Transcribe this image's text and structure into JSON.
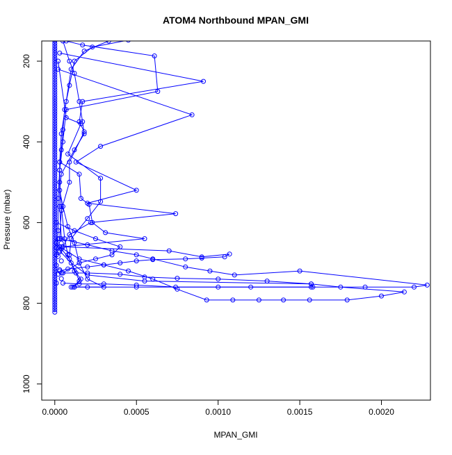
{
  "chart_data": {
    "type": "line",
    "title": "ATOM4 Northbound MPAN_GMI",
    "xlabel": "MPAN_GMI",
    "ylabel": "Pressure (mbar)",
    "xlim": [
      -8e-05,
      0.0023
    ],
    "ylim": [
      1040,
      150
    ],
    "y_reversed": true,
    "grid": false,
    "x_ticks": [
      {
        "value": 0,
        "label": "0.0000"
      },
      {
        "value": 0.0005,
        "label": "0.0005"
      },
      {
        "value": 0.001,
        "label": "0.0010"
      },
      {
        "value": 0.0015,
        "label": "0.0015"
      },
      {
        "value": 0.002,
        "label": "0.0020"
      }
    ],
    "y_ticks": [
      {
        "value": 200,
        "label": "200"
      },
      {
        "value": 400,
        "label": "400"
      },
      {
        "value": 600,
        "label": "600"
      },
      {
        "value": 800,
        "label": "800"
      },
      {
        "value": 1000,
        "label": "1000"
      }
    ],
    "color": "#0000ff",
    "series": [
      {
        "points": [
          [
            5e-05,
            150
          ],
          [
            9e-05,
            200
          ],
          [
            0.00012,
            230
          ],
          [
            0.00015,
            300
          ],
          [
            0.00017,
            350
          ],
          [
            0.00018,
            380
          ],
          [
            0.00012,
            420
          ],
          [
            4e-05,
            480
          ],
          [
            3e-05,
            520
          ],
          [
            5e-05,
            560
          ],
          [
            8e-05,
            610
          ],
          [
            0.00012,
            650
          ],
          [
            0.00015,
            700
          ],
          [
            0.0002,
            740
          ],
          [
            0.0003,
            760
          ],
          [
            0.0001,
            760
          ]
        ]
      },
      {
        "points": [
          [
            0.00033,
            150
          ],
          [
            0.00018,
            175
          ],
          [
            0.0001,
            220
          ],
          [
            7e-05,
            300
          ],
          [
            4e-05,
            380
          ],
          [
            3e-05,
            450
          ],
          [
            3e-05,
            500
          ],
          [
            4e-05,
            560
          ],
          [
            6e-05,
            640
          ],
          [
            8e-05,
            680
          ],
          [
            0.00012,
            720
          ],
          [
            0.00016,
            740
          ],
          [
            0.00011,
            760
          ]
        ]
      },
      {
        "points": [
          [
            0.00045,
            148
          ],
          [
            0.00023,
            165
          ],
          [
            0.00012,
            200
          ],
          [
            9e-05,
            260
          ],
          [
            6e-05,
            320
          ],
          [
            5e-05,
            370
          ],
          [
            4e-05,
            420
          ],
          [
            3e-05,
            470
          ],
          [
            2e-05,
            540
          ],
          [
            2e-05,
            620
          ],
          [
            1e-05,
            680
          ]
        ]
      },
      {
        "points": [
          [
            7e-05,
            150
          ],
          [
            0.00017,
            160
          ],
          [
            0.00061,
            187
          ],
          [
            0.00063,
            275
          ],
          [
            7e-05,
            320
          ],
          [
            5e-05,
            400
          ],
          [
            3e-05,
            470
          ],
          [
            3e-05,
            560
          ],
          [
            4e-05,
            640
          ]
        ]
      },
      {
        "points": [
          [
            3e-05,
            180
          ],
          [
            0.00091,
            250
          ],
          [
            0.00017,
            300
          ],
          [
            0.00015,
            350
          ],
          [
            0.00018,
            375
          ],
          [
            9e-05,
            450
          ],
          [
            9e-05,
            500
          ],
          [
            4e-05,
            570
          ],
          [
            3e-05,
            640
          ]
        ]
      },
      {
        "points": [
          [
            2e-05,
            220
          ],
          [
            0.00084,
            333
          ],
          [
            0.00028,
            411
          ],
          [
            0.00013,
            450
          ],
          [
            0.0005,
            520
          ],
          [
            0.0002,
            552
          ],
          [
            0.00074,
            578
          ],
          [
            0.00022,
            600
          ],
          [
            9e-05,
            630
          ],
          [
            5e-05,
            660
          ]
        ]
      },
      {
        "points": [
          [
            2e-05,
            200
          ],
          [
            7e-05,
            340
          ],
          [
            0.00016,
            355
          ],
          [
            8e-05,
            430
          ],
          [
            0.00028,
            490
          ],
          [
            0.00028,
            548
          ],
          [
            0.0002,
            590
          ],
          [
            0.0001,
            640
          ],
          [
            9e-05,
            680
          ]
        ]
      },
      {
        "points": [
          [
            3e-05,
            450
          ],
          [
            0.00015,
            480
          ],
          [
            0.00016,
            540
          ],
          [
            0.00021,
            555
          ],
          [
            0.00023,
            600
          ],
          [
            0.00031,
            625
          ],
          [
            0.00055,
            640
          ],
          [
            5e-05,
            660
          ]
        ]
      },
      {
        "points": [
          [
            4e-05,
            660
          ],
          [
            0.0007,
            670
          ],
          [
            0.0009,
            685
          ],
          [
            0.00107,
            678
          ],
          [
            0.00104,
            685
          ],
          [
            0.0009,
            688
          ],
          [
            0.0008,
            690
          ],
          [
            0.0006,
            692
          ],
          [
            0.0005,
            695
          ],
          [
            0.0004,
            700
          ],
          [
            0.0003,
            705
          ],
          [
            0.0002,
            710
          ],
          [
            8e-05,
            715
          ],
          [
            3e-05,
            720
          ]
        ]
      },
      {
        "points": [
          [
            3e-05,
            640
          ],
          [
            0.0002,
            655
          ],
          [
            0.00035,
            670
          ],
          [
            0.0005,
            680
          ],
          [
            0.0006,
            690
          ],
          [
            0.0008,
            710
          ],
          [
            0.00095,
            720
          ],
          [
            0.0011,
            730
          ],
          [
            0.0015,
            720
          ],
          [
            0.00228,
            755
          ],
          [
            0.0022,
            760
          ],
          [
            0.0019,
            760
          ],
          [
            0.00157,
            760
          ],
          [
            0.0012,
            760
          ],
          [
            0.001,
            760
          ],
          [
            0.00074,
            760
          ],
          [
            0.0005,
            755
          ],
          [
            0.0003,
            752
          ],
          [
            0.00015,
            752
          ],
          [
            5e-05,
            750
          ]
        ]
      },
      {
        "points": [
          [
            3e-05,
            660
          ],
          [
            0.00015,
            690
          ],
          [
            0.0003,
            705
          ],
          [
            0.00045,
            720
          ],
          [
            0.0006,
            740
          ],
          [
            0.00075,
            765
          ],
          [
            0.00093,
            792
          ],
          [
            0.00109,
            792
          ],
          [
            0.00125,
            792
          ],
          [
            0.0014,
            792
          ],
          [
            0.00156,
            792
          ],
          [
            0.00179,
            792
          ],
          [
            0.002,
            782
          ],
          [
            0.00214,
            772
          ],
          [
            0.00175,
            760
          ],
          [
            0.00157,
            752
          ],
          [
            0.0013,
            745
          ],
          [
            0.001,
            740
          ],
          [
            0.00075,
            738
          ],
          [
            0.00055,
            735
          ],
          [
            0.0004,
            728
          ],
          [
            0.0002,
            725
          ],
          [
            4e-05,
            725
          ]
        ]
      },
      {
        "points": [
          [
            3e-05,
            670
          ],
          [
            0.0001,
            700
          ],
          [
            0.0002,
            730
          ],
          [
            0.00055,
            745
          ],
          [
            0.00157,
            752
          ],
          [
            0.00158,
            760
          ],
          [
            0.0005,
            760
          ],
          [
            0.0002,
            760
          ],
          [
            0.00012,
            760
          ]
        ]
      },
      {
        "points": [
          [
            1e-05,
            600
          ],
          [
            0.00012,
            620
          ],
          [
            0.00025,
            640
          ],
          [
            0.0004,
            660
          ],
          [
            0.00035,
            680
          ],
          [
            0.00025,
            690
          ],
          [
            0.00015,
            700
          ],
          [
            5e-05,
            725
          ]
        ]
      },
      {
        "points": [
          [
            1e-05,
            650
          ],
          [
            4e-05,
            665
          ],
          [
            9e-05,
            690
          ],
          [
            0.00013,
            725
          ],
          [
            0.00015,
            745
          ],
          [
            0.00012,
            760
          ]
        ]
      }
    ],
    "axis_column": {
      "x": 0.0,
      "y_from": 150,
      "y_to": 822,
      "step": 6
    },
    "near_axis_jitter": {
      "x_values": [
        2e-05,
        4e-05,
        1e-05,
        3e-05
      ],
      "y_from": 640,
      "y_to": 760,
      "step": 11
    }
  }
}
